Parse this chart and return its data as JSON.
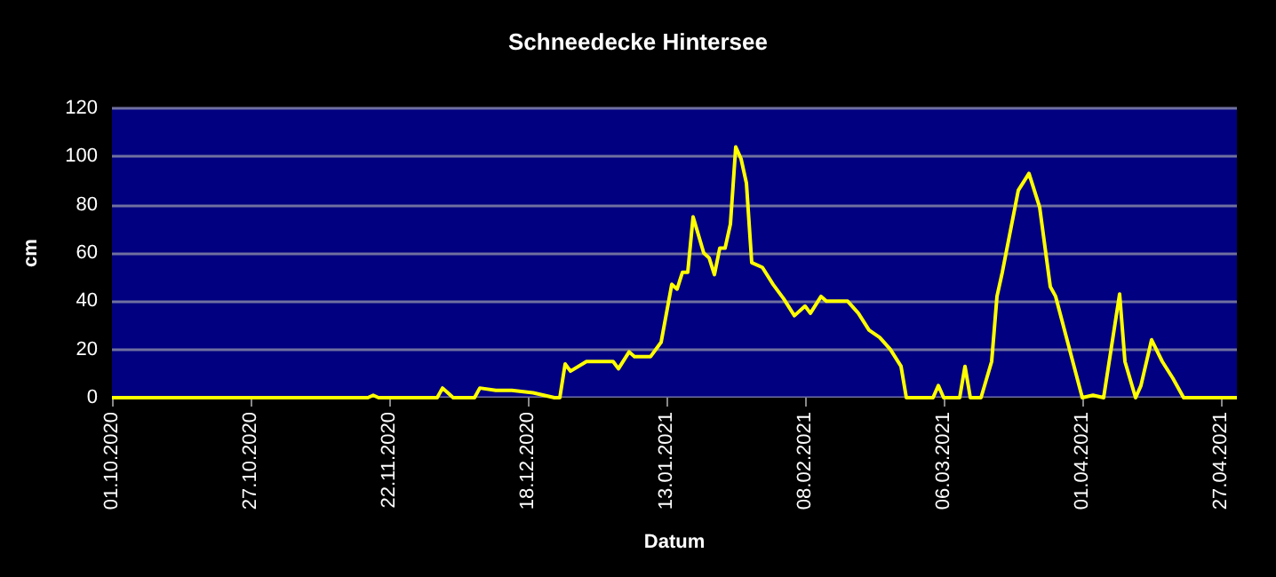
{
  "chart_data": {
    "type": "line",
    "title": "Schneedecke Hintersee",
    "xlabel": "Datum",
    "ylabel": "cm",
    "x": [
      "2020-10-01",
      "2020-11-18",
      "2020-11-19",
      "2020-11-20",
      "2020-12-01",
      "2020-12-02",
      "2020-12-04",
      "2020-12-08",
      "2020-12-09",
      "2020-12-12",
      "2020-12-15",
      "2020-12-19",
      "2020-12-21",
      "2020-12-23",
      "2020-12-24",
      "2020-12-25",
      "2020-12-26",
      "2020-12-29",
      "2021-01-03",
      "2021-01-04",
      "2021-01-06",
      "2021-01-07",
      "2021-01-10",
      "2021-01-12",
      "2021-01-14",
      "2021-01-15",
      "2021-01-16",
      "2021-01-17",
      "2021-01-18",
      "2021-01-20",
      "2021-01-21",
      "2021-01-22",
      "2021-01-23",
      "2021-01-24",
      "2021-01-25",
      "2021-01-26",
      "2021-01-27",
      "2021-01-28",
      "2021-01-29",
      "2021-01-31",
      "2021-02-02",
      "2021-02-04",
      "2021-02-06",
      "2021-02-08",
      "2021-02-09",
      "2021-02-11",
      "2021-02-12",
      "2021-02-16",
      "2021-02-18",
      "2021-02-20",
      "2021-02-22",
      "2021-02-24",
      "2021-02-26",
      "2021-02-27",
      "2021-03-04",
      "2021-03-05",
      "2021-03-06",
      "2021-03-09",
      "2021-03-10",
      "2021-03-11",
      "2021-03-13",
      "2021-03-15",
      "2021-03-16",
      "2021-03-17",
      "2021-03-20",
      "2021-03-22",
      "2021-03-24",
      "2021-03-26",
      "2021-03-27",
      "2021-04-01",
      "2021-04-03",
      "2021-04-05",
      "2021-04-08",
      "2021-04-09",
      "2021-04-11",
      "2021-04-12",
      "2021-04-14",
      "2021-04-16",
      "2021-04-18",
      "2021-04-20",
      "2021-04-30"
    ],
    "series": [
      {
        "color": "#ffff00",
        "values": [
          0,
          0,
          1,
          0,
          0,
          4,
          0,
          0,
          4,
          3,
          3,
          2,
          1,
          0,
          0,
          14,
          11,
          15,
          15,
          12,
          19,
          17,
          17,
          23,
          47,
          45,
          52,
          52,
          75,
          60,
          58,
          51,
          62,
          62,
          72,
          104,
          99,
          89,
          56,
          54,
          47,
          41,
          34,
          38,
          35,
          42,
          40,
          40,
          35,
          28,
          25,
          20,
          13,
          0,
          0,
          5,
          0,
          0,
          13,
          0,
          0,
          15,
          42,
          52,
          86,
          93,
          79,
          46,
          42,
          0,
          1,
          0,
          43,
          15,
          0,
          5,
          24,
          15,
          8,
          0,
          0
        ]
      }
    ],
    "xlim": [
      "2020-10-01",
      "2021-04-30"
    ],
    "xticks": [
      {
        "value": "2020-10-01",
        "label": "01.10.2020"
      },
      {
        "value": "2020-10-27",
        "label": "27.10.2020"
      },
      {
        "value": "2020-11-22",
        "label": "22.11.2020"
      },
      {
        "value": "2020-12-18",
        "label": "18.12.2020"
      },
      {
        "value": "2021-01-13",
        "label": "13.01.2021"
      },
      {
        "value": "2021-02-08",
        "label": "08.02.2021"
      },
      {
        "value": "2021-03-06",
        "label": "06.03.2021"
      },
      {
        "value": "2021-04-01",
        "label": "01.04.2021"
      },
      {
        "value": "2021-04-27",
        "label": "27.04.2021"
      }
    ],
    "ylim": [
      0,
      120
    ],
    "yticks": [
      0,
      20,
      40,
      60,
      80,
      100,
      120
    ],
    "grid": "y",
    "marker": "none",
    "line_style": "solid"
  }
}
